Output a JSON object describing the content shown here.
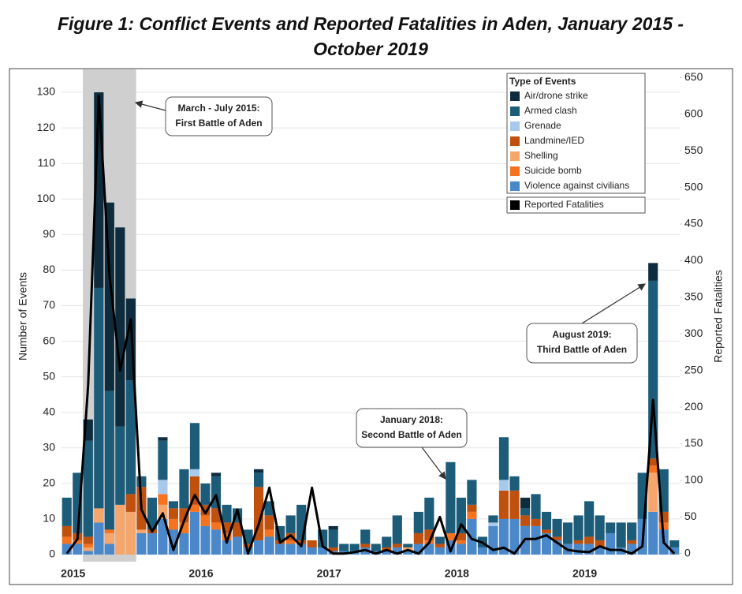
{
  "chart_data": {
    "type": "bar",
    "stacked": true,
    "title": "Figure 1: Conflict Events and Reported Fatalities in Aden, January 2015 - October 2019",
    "ylabel": "Number of Events",
    "y2label": "Reported Fatalities",
    "legend_title": "Type of Events",
    "legend": "upper right",
    "grid": true,
    "categories": [
      "2015",
      null,
      null,
      null,
      null,
      null,
      null,
      null,
      null,
      null,
      null,
      null,
      "2016",
      null,
      null,
      null,
      null,
      null,
      null,
      null,
      null,
      null,
      null,
      null,
      "2017",
      null,
      null,
      null,
      null,
      null,
      null,
      null,
      null,
      null,
      null,
      null,
      "2018",
      null,
      null,
      null,
      null,
      null,
      null,
      null,
      null,
      null,
      null,
      null,
      "2019",
      null,
      null,
      null,
      null,
      null,
      null,
      null,
      null,
      null
    ],
    "ylim": [
      -2,
      136
    ],
    "yticks": [
      0,
      10,
      20,
      30,
      40,
      50,
      60,
      70,
      80,
      90,
      100,
      110,
      120,
      130
    ],
    "y2lim": [
      -11,
      659
    ],
    "y2ticks": [
      0,
      50,
      100,
      150,
      200,
      250,
      300,
      350,
      400,
      450,
      500,
      550,
      600,
      650
    ],
    "series": [
      {
        "name": "Air/drone strike",
        "color": "#0e2c3e",
        "values": [
          0,
          0,
          6,
          55,
          53,
          56,
          23,
          0,
          0,
          1,
          0,
          0,
          0,
          0,
          1,
          0,
          0,
          0,
          1,
          0,
          0,
          0,
          0,
          0,
          0,
          1,
          0,
          0,
          0,
          0,
          0,
          0,
          0,
          0,
          0,
          0,
          0,
          0,
          0,
          0,
          0,
          0,
          0,
          3,
          0,
          0,
          0,
          0,
          0,
          0,
          0,
          0,
          0,
          0,
          0,
          5,
          0,
          0
        ]
      },
      {
        "name": "Armed clash",
        "color": "#1d5c78",
        "values": [
          8,
          17,
          27,
          62,
          39,
          22,
          32,
          3,
          9,
          11,
          2,
          11,
          13,
          6,
          9,
          5,
          4,
          4,
          4,
          4,
          4,
          5,
          10,
          0,
          5,
          5,
          2,
          2,
          4,
          2,
          3,
          8,
          1,
          6,
          9,
          2,
          20,
          10,
          7,
          3,
          2,
          12,
          4,
          2,
          7,
          5,
          5,
          6,
          7,
          10,
          7,
          3,
          7,
          5,
          13,
          50,
          12,
          2
        ]
      },
      {
        "name": "Grenade",
        "color": "#a8c8ec",
        "values": [
          0,
          0,
          0,
          0,
          0,
          0,
          0,
          0,
          0,
          4,
          0,
          0,
          2,
          0,
          0,
          0,
          0,
          0,
          0,
          0,
          0,
          0,
          0,
          0,
          0,
          0,
          0,
          0,
          0,
          0,
          0,
          0,
          0,
          0,
          0,
          0,
          0,
          0,
          0,
          0,
          1,
          3,
          0,
          0,
          0,
          0,
          0,
          0,
          0,
          0,
          0,
          0,
          0,
          0,
          0,
          0,
          0,
          0
        ]
      },
      {
        "name": "Landmine/IED",
        "color": "#c0500e",
        "values": [
          3,
          2,
          2,
          0,
          0,
          0,
          5,
          12,
          1,
          0,
          3,
          4,
          8,
          3,
          4,
          3,
          4,
          1,
          15,
          4,
          1,
          2,
          1,
          2,
          0,
          1,
          0,
          0,
          1,
          0,
          1,
          1,
          0,
          3,
          3,
          1,
          0,
          2,
          2,
          0,
          0,
          8,
          8,
          3,
          2,
          1,
          1,
          0,
          1,
          2,
          2,
          0,
          0,
          1,
          0,
          2,
          3,
          0
        ]
      },
      {
        "name": "Shelling",
        "color": "#f5a66c",
        "values": [
          0,
          0,
          1,
          4,
          3,
          14,
          12,
          1,
          0,
          4,
          0,
          0,
          0,
          0,
          0,
          0,
          0,
          0,
          0,
          0,
          0,
          0,
          0,
          0,
          0,
          0,
          0,
          0,
          0,
          0,
          0,
          0,
          1,
          0,
          0,
          0,
          0,
          0,
          0,
          0,
          0,
          0,
          0,
          0,
          0,
          0,
          0,
          0,
          0,
          0,
          0,
          0,
          0,
          0,
          0,
          11,
          0,
          0
        ]
      },
      {
        "name": "Suicide bomb",
        "color": "#f47220",
        "values": [
          2,
          1,
          1,
          0,
          1,
          0,
          0,
          0,
          0,
          3,
          3,
          3,
          2,
          3,
          2,
          2,
          0,
          0,
          0,
          2,
          0,
          1,
          0,
          0,
          0,
          0,
          0,
          0,
          0,
          0,
          0,
          0,
          0,
          0,
          1,
          0,
          2,
          1,
          2,
          0,
          0,
          0,
          0,
          0,
          0,
          0,
          0,
          0,
          0,
          0,
          0,
          0,
          0,
          0,
          0,
          2,
          2,
          0
        ]
      },
      {
        "name": "Violence against civilians",
        "color": "#4b88c9",
        "values": [
          3,
          3,
          1,
          9,
          3,
          0,
          0,
          6,
          6,
          10,
          7,
          6,
          12,
          8,
          7,
          4,
          5,
          2,
          4,
          5,
          3,
          3,
          3,
          2,
          2,
          1,
          1,
          1,
          2,
          1,
          1,
          2,
          1,
          3,
          3,
          2,
          4,
          3,
          10,
          2,
          8,
          10,
          10,
          8,
          8,
          6,
          4,
          3,
          3,
          3,
          2,
          6,
          2,
          3,
          10,
          12,
          7,
          2
        ]
      },
      {
        "name": "Reported Fatalities",
        "color": "#000000",
        "axis": "y2",
        "type": "line",
        "values": [
          0,
          20,
          230,
          625,
          380,
          250,
          320,
          60,
          30,
          55,
          5,
          45,
          80,
          55,
          80,
          15,
          60,
          0,
          40,
          90,
          15,
          25,
          10,
          90,
          10,
          0,
          0,
          2,
          5,
          0,
          5,
          0,
          5,
          0,
          15,
          50,
          3,
          40,
          20,
          15,
          5,
          8,
          0,
          20,
          20,
          25,
          15,
          5,
          3,
          2,
          10,
          5,
          5,
          0,
          10,
          210,
          15,
          0
        ]
      }
    ],
    "annotations": [
      [
        "March - July 2015:",
        "First Battle of Aden"
      ],
      [
        "August 2019:",
        "Third Battle of Aden"
      ],
      [
        "January 2018:",
        "Second Battle of Aden"
      ]
    ]
  }
}
